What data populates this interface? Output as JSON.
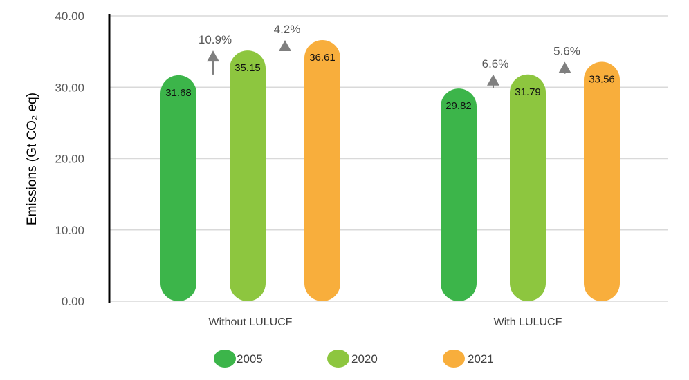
{
  "chart_data": {
    "type": "bar",
    "title": "",
    "xlabel": "",
    "ylabel": "Emissions (Gt CO₂ eq)",
    "ylim": [
      0,
      40
    ],
    "yticks": [
      "0.00",
      "10.00",
      "20.00",
      "30.00",
      "40.00"
    ],
    "grid": true,
    "legend_position": "bottom",
    "categories": [
      "Without LULUCF",
      "With LULUCF"
    ],
    "series": [
      {
        "name": "2005",
        "color": "#3cb54a",
        "values": [
          31.68,
          29.82
        ],
        "labels": [
          "31.68",
          "29.82"
        ]
      },
      {
        "name": "2020",
        "color": "#8dc63f",
        "values": [
          35.15,
          31.79
        ],
        "labels": [
          "35.15",
          "31.79"
        ]
      },
      {
        "name": "2021",
        "color": "#f8ae3c",
        "values": [
          36.61,
          33.56
        ],
        "labels": [
          "36.61",
          "33.56"
        ]
      }
    ],
    "annotations": [
      {
        "text": "10.9%",
        "category": 0,
        "between": [
          0,
          1
        ],
        "direction": "up"
      },
      {
        "text": "4.2%",
        "category": 0,
        "between": [
          1,
          2
        ],
        "direction": "up"
      },
      {
        "text": "6.6%",
        "category": 1,
        "between": [
          0,
          1
        ],
        "direction": "up"
      },
      {
        "text": "5.6%",
        "category": 1,
        "between": [
          1,
          2
        ],
        "direction": "up"
      }
    ]
  }
}
